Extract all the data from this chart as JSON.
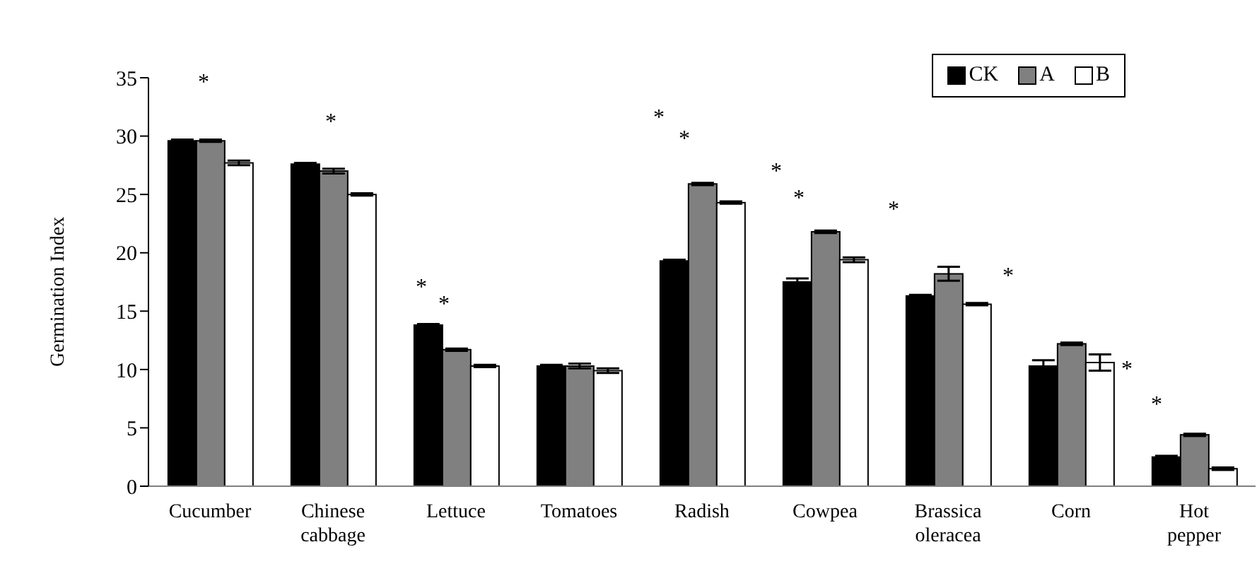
{
  "chart_data": {
    "type": "bar",
    "ylabel": "Germination Index",
    "categories": [
      "Cucumber",
      "Chinese cabbage",
      "Lettuce",
      "Tomatoes",
      "Radish",
      "Cowpea",
      "Brassica oleracea",
      "Corn",
      "Hot pepper"
    ],
    "series": [
      {
        "name": "CK",
        "color": "#000000",
        "values": [
          29.6,
          27.6,
          13.8,
          10.3,
          19.3,
          17.5,
          16.3,
          10.3,
          2.5
        ],
        "errors": [
          0.1,
          0.1,
          0.1,
          0.1,
          0.1,
          0.3,
          0.1,
          0.5,
          0.1
        ]
      },
      {
        "name": "A",
        "color": "#808080",
        "values": [
          29.6,
          27.0,
          11.7,
          10.3,
          25.9,
          21.8,
          18.2,
          12.2,
          4.4
        ],
        "errors": [
          0.1,
          0.2,
          0.1,
          0.2,
          0.1,
          0.1,
          0.6,
          0.1,
          0.1
        ]
      },
      {
        "name": "B",
        "color": "#ffffff",
        "values": [
          27.7,
          25.0,
          10.3,
          9.9,
          24.3,
          19.4,
          15.6,
          10.6,
          1.5
        ],
        "errors": [
          0.2,
          0.1,
          0.1,
          0.2,
          0.1,
          0.2,
          0.1,
          0.7,
          0.1
        ]
      }
    ],
    "ylim": [
      0,
      35
    ],
    "yticks": [
      0,
      5,
      10,
      15,
      20,
      25,
      30,
      35
    ],
    "grid": false,
    "legend": "top right",
    "annotations": [
      "*",
      "*",
      "*",
      "*",
      "*",
      "*",
      "*",
      "*",
      "*",
      "*",
      "*",
      "*"
    ]
  }
}
